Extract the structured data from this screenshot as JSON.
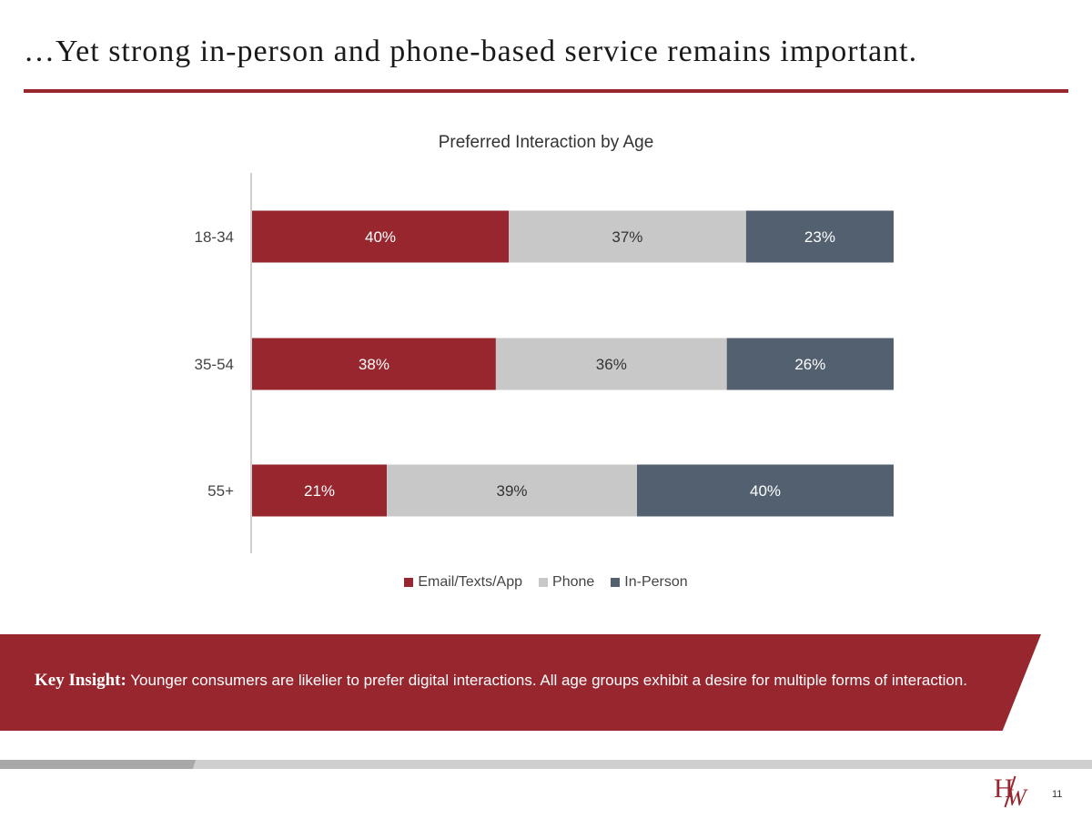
{
  "slide": {
    "title": "…Yet strong in-person and phone-based service remains important.",
    "page_number": "11"
  },
  "insight": {
    "label": "Key Insight:",
    "text": "Younger consumers are likelier to prefer digital interactions. All age groups exhibit a desire for multiple forms of interaction."
  },
  "logo": {
    "text": "HW"
  },
  "colors": {
    "accent": "#97262e",
    "phone": "#c8c8c8",
    "in_person": "#536070"
  },
  "chart_data": {
    "type": "bar",
    "orientation": "horizontal",
    "stacked": true,
    "title": "Preferred Interaction by Age",
    "categories": [
      "18-34",
      "35-54",
      "55+"
    ],
    "series": [
      {
        "name": "Email/Texts/App",
        "values": [
          40,
          38,
          21
        ],
        "labels": [
          "40%",
          "38%",
          "21%"
        ],
        "color": "#97262e",
        "label_color": "#ffffff"
      },
      {
        "name": "Phone",
        "values": [
          37,
          36,
          39
        ],
        "labels": [
          "37%",
          "36%",
          "39%"
        ],
        "color": "#c8c8c8",
        "label_color": "#333333"
      },
      {
        "name": "In-Person",
        "values": [
          23,
          26,
          40
        ],
        "labels": [
          "23%",
          "26%",
          "40%"
        ],
        "color": "#536070",
        "label_color": "#ffffff"
      }
    ],
    "xlim": [
      0,
      100
    ],
    "legend_position": "bottom",
    "grid": false
  }
}
